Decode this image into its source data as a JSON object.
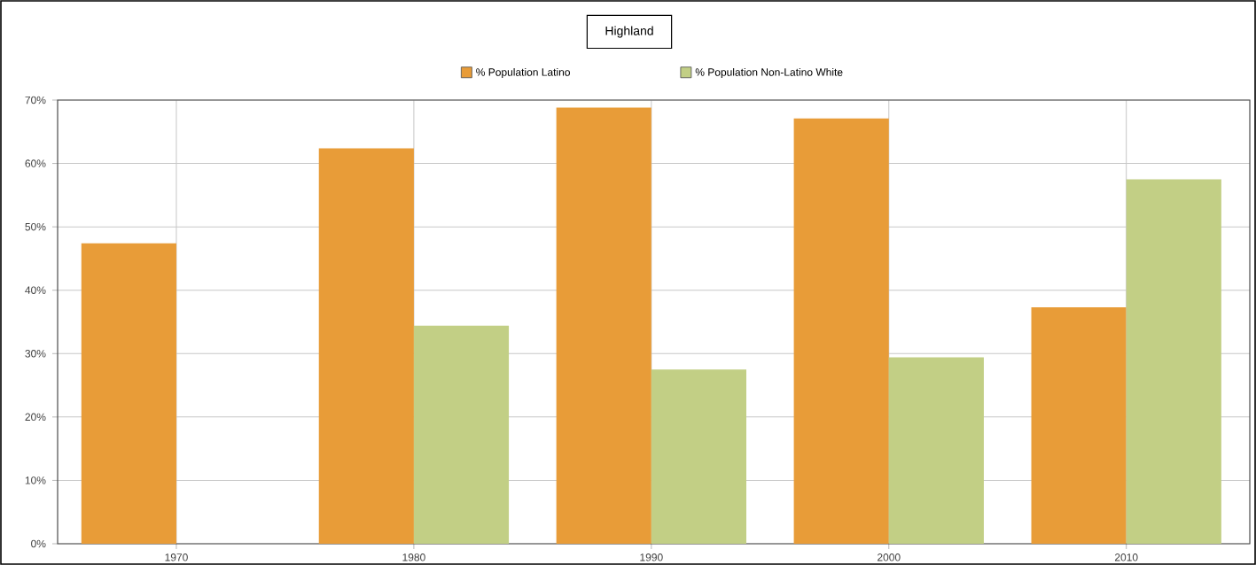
{
  "chart_data": {
    "type": "bar",
    "title": "Highland",
    "categories": [
      "1970",
      "1980",
      "1990",
      "2000",
      "2010"
    ],
    "series": [
      {
        "name": "% Population Latino",
        "color": "#e89c38",
        "values": [
          47.4,
          62.4,
          68.8,
          67.1,
          37.3
        ]
      },
      {
        "name": "% Population Non-Latino White",
        "color": "#c2cf85",
        "values": [
          null,
          34.4,
          27.5,
          29.4,
          57.5
        ]
      }
    ],
    "ylim": [
      0,
      70
    ],
    "yticks": [
      {
        "value": 0,
        "label": "0%"
      },
      {
        "value": 10,
        "label": "10%"
      },
      {
        "value": 20,
        "label": "20%"
      },
      {
        "value": 30,
        "label": "30%"
      },
      {
        "value": 40,
        "label": "40%"
      },
      {
        "value": 50,
        "label": "50%"
      },
      {
        "value": 60,
        "label": "60%"
      },
      {
        "value": 70,
        "label": "70%"
      }
    ],
    "grid": true,
    "legend": "top"
  }
}
